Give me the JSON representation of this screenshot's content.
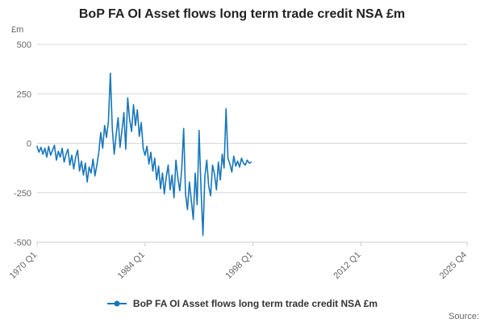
{
  "chart_data": {
    "type": "line",
    "title": "BoP FA OI Asset flows long term trade credit NSA £m",
    "ylabel": "£m",
    "xlabel": "",
    "ylim": [
      -500,
      500
    ],
    "yticks": [
      500,
      250,
      0,
      -250,
      -500
    ],
    "xticks": [
      "1970 Q1",
      "1984 Q1",
      "1998 Q1",
      "2012 Q1",
      "2025 Q4"
    ],
    "x_domain": [
      "1970 Q1",
      "2025 Q4"
    ],
    "grid": true,
    "legend_position": "bottom",
    "colors": {
      "grid": "#d8d8d8",
      "axis": "#cccccc",
      "tick_text": "#666666"
    },
    "series": [
      {
        "name": "BoP FA OI Asset flows long term trade credit NSA £m",
        "color": "#1776ba",
        "start": "1970 Q1",
        "end": "1997 Q4",
        "frequency": "quarterly",
        "values": [
          -15,
          -45,
          -20,
          -55,
          -25,
          -70,
          -15,
          -60,
          -35,
          -10,
          -85,
          -40,
          -70,
          -25,
          -95,
          -55,
          -30,
          -110,
          -60,
          -130,
          -70,
          -35,
          -140,
          -90,
          -160,
          -100,
          -195,
          -120,
          -150,
          -80,
          -165,
          -110,
          -45,
          55,
          -25,
          90,
          30,
          110,
          355,
          75,
          -55,
          45,
          130,
          -20,
          65,
          155,
          -30,
          230,
          120,
          60,
          195,
          90,
          170,
          35,
          105,
          -25,
          -60,
          -15,
          -105,
          -45,
          -140,
          -75,
          -185,
          -115,
          -230,
          -150,
          -255,
          -170,
          -110,
          -235,
          -160,
          -275,
          -85,
          -175,
          -240,
          -130,
          75,
          -255,
          -335,
          -195,
          -290,
          -385,
          -150,
          -310,
          65,
          -230,
          -465,
          -170,
          -85,
          -215,
          -265,
          -110,
          -155,
          -235,
          -95,
          -185,
          -55,
          -125,
          175,
          -75,
          -105,
          -145,
          -65,
          -115,
          -90,
          -120,
          -75,
          -100,
          -110,
          -85,
          -100,
          -95
        ]
      }
    ],
    "footer": {
      "source_label": "Source:"
    }
  }
}
